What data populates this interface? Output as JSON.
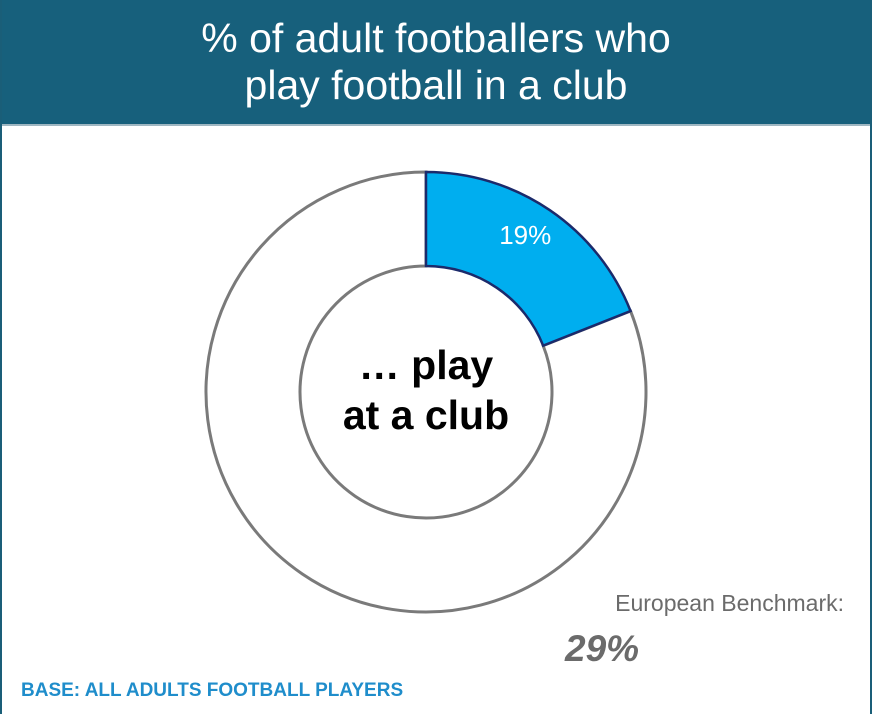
{
  "title_lines": [
    "% of adult footballers who",
    "play football in a club"
  ],
  "center_label_lines": [
    "… play",
    "at a club"
  ],
  "benchmark": {
    "label": "European Benchmark:",
    "value": "29%"
  },
  "base_note": "BASE: ALL ADULTS FOOTBALL PLAYERS",
  "colors": {
    "header_bg": "#17607c",
    "highlight": "#00aeef",
    "highlight_stroke": "#1b2a6b",
    "ring_stroke": "#7a7a7a",
    "base_note": "#1f8dcb",
    "benchmark": "#6b6b6b"
  },
  "chart_data": {
    "type": "pie",
    "variant": "donut",
    "slices": [
      {
        "label": "play at a club",
        "value": 19,
        "data_label": "19%",
        "highlight": true
      },
      {
        "label": "",
        "value": 81,
        "data_label": "",
        "highlight": false
      }
    ]
  }
}
